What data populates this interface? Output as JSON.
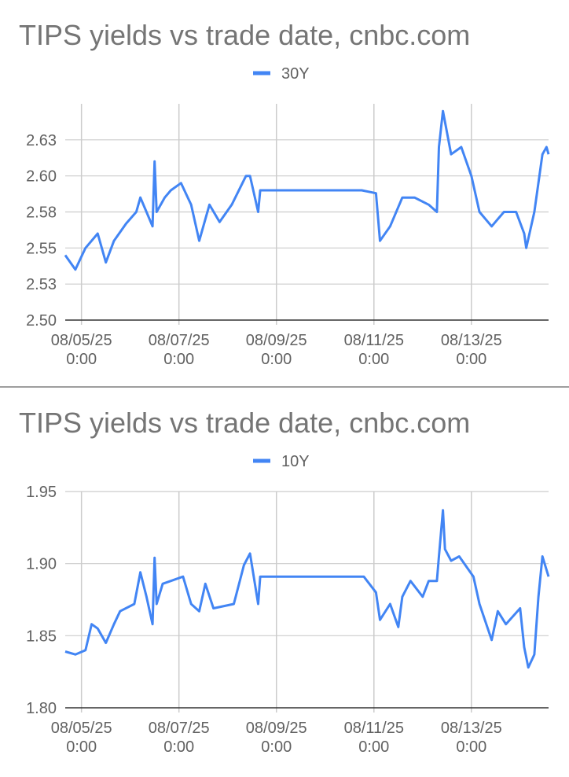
{
  "chart_data": [
    {
      "type": "line",
      "title": "TIPS yields vs trade date, cnbc.com",
      "x": [
        "08/04/25 16:00",
        "08/04/25 21:00",
        "08/05/25 2:00",
        "08/05/25 8:00",
        "08/05/25 12:00",
        "08/05/25 16:00",
        "08/05/25 22:00",
        "08/06/25 3:00",
        "08/06/25 5:00",
        "08/06/25 8:00",
        "08/06/25 11:00",
        "08/06/25 12:00",
        "08/06/25 13:00",
        "08/06/25 17:00",
        "08/06/25 20:00",
        "08/07/25 1:00",
        "08/07/25 6:00",
        "08/07/25 10:00",
        "08/07/25 15:00",
        "08/07/25 20:00",
        "08/08/25 2:00",
        "08/08/25 9:00",
        "08/08/25 11:00",
        "08/08/25 15:00",
        "08/08/25 16:00",
        "08/10/25 18:00",
        "08/11/25 1:00",
        "08/11/25 3:00",
        "08/11/25 8:00",
        "08/11/25 14:00",
        "08/11/25 20:00",
        "08/12/25 3:00",
        "08/12/25 7:00",
        "08/12/25 8:00",
        "08/12/25 10:00",
        "08/12/25 14:00",
        "08/12/25 19:00",
        "08/13/25 0:00",
        "08/13/25 4:00",
        "08/13/25 10:00",
        "08/13/25 16:00",
        "08/13/25 22:00",
        "08/14/25 2:00",
        "08/14/25 3:00",
        "08/14/25 7:00",
        "08/14/25 11:00",
        "08/14/25 13:00",
        "08/14/25 14:00"
      ],
      "series": [
        {
          "name": "30Y",
          "color": "#4285f4",
          "values": [
            2.545,
            2.535,
            2.55,
            2.56,
            2.54,
            2.555,
            2.567,
            2.575,
            2.585,
            2.575,
            2.565,
            2.61,
            2.575,
            2.585,
            2.59,
            2.595,
            2.58,
            2.555,
            2.58,
            2.568,
            2.58,
            2.6,
            2.6,
            2.575,
            2.59,
            2.59,
            2.588,
            2.555,
            2.565,
            2.585,
            2.585,
            2.58,
            2.575,
            2.62,
            2.645,
            2.615,
            2.62,
            2.6,
            2.575,
            2.565,
            2.575,
            2.575,
            2.56,
            2.55,
            2.575,
            2.615,
            2.62,
            2.615
          ]
        }
      ],
      "xlim": [
        "08/04/25 16:00",
        "08/14/25 14:00"
      ],
      "xticks": [
        "08/05/25 0:00",
        "08/07/25 0:00",
        "08/09/25 0:00",
        "08/11/25 0:00",
        "08/13/25 0:00"
      ],
      "ylim": [
        2.5,
        2.65
      ],
      "yticks": [
        {
          "value": 2.5,
          "label": "2.50"
        },
        {
          "value": 2.525,
          "label": "2.53"
        },
        2.55,
        {
          "value": 2.575,
          "label": "2.58"
        },
        {
          "value": 2.6,
          "label": "2.60"
        },
        {
          "value": 2.625,
          "label": "2.63"
        }
      ],
      "grid": true
    },
    {
      "type": "line",
      "title": "TIPS yields vs trade date, cnbc.com",
      "x": [
        "08/04/25 16:00",
        "08/04/25 21:00",
        "08/05/25 2:00",
        "08/05/25 5:00",
        "08/05/25 8:00",
        "08/05/25 12:00",
        "08/05/25 16:00",
        "08/05/25 19:00",
        "08/06/25 2:00",
        "08/06/25 5:00",
        "08/06/25 8:00",
        "08/06/25 11:00",
        "08/06/25 12:00",
        "08/06/25 13:00",
        "08/06/25 16:00",
        "08/06/25 20:00",
        "08/07/25 2:00",
        "08/07/25 6:00",
        "08/07/25 10:00",
        "08/07/25 13:00",
        "08/07/25 17:00",
        "08/08/25 3:00",
        "08/08/25 8:00",
        "08/08/25 11:00",
        "08/08/25 15:00",
        "08/08/25 16:00",
        "08/10/25 19:00",
        "08/11/25 1:00",
        "08/11/25 3:00",
        "08/11/25 8:00",
        "08/11/25 12:00",
        "08/11/25 14:00",
        "08/11/25 18:00",
        "08/12/25 0:00",
        "08/12/25 3:00",
        "08/12/25 7:00",
        "08/12/25 8:00",
        "08/12/25 10:00",
        "08/12/25 11:00",
        "08/12/25 14:00",
        "08/12/25 18:00",
        "08/13/25 1:00",
        "08/13/25 4:00",
        "08/13/25 10:00",
        "08/13/25 13:00",
        "08/13/25 17:00",
        "08/14/25 0:00",
        "08/14/25 2:00",
        "08/14/25 4:00",
        "08/14/25 7:00",
        "08/14/25 9:00",
        "08/14/25 11:00",
        "08/14/25 14:00"
      ],
      "series": [
        {
          "name": "10Y",
          "color": "#4285f4",
          "values": [
            1.839,
            1.837,
            1.84,
            1.858,
            1.855,
            1.845,
            1.858,
            1.867,
            1.872,
            1.894,
            1.877,
            1.858,
            1.904,
            1.872,
            1.886,
            1.888,
            1.891,
            1.872,
            1.867,
            1.886,
            1.869,
            1.872,
            1.899,
            1.907,
            1.872,
            1.891,
            1.891,
            1.88,
            1.861,
            1.872,
            1.856,
            1.877,
            1.888,
            1.877,
            1.888,
            1.888,
            1.905,
            1.937,
            1.91,
            1.902,
            1.905,
            1.891,
            1.872,
            1.847,
            1.867,
            1.858,
            1.869,
            1.842,
            1.828,
            1.837,
            1.877,
            1.905,
            1.891
          ]
        }
      ],
      "xlim": [
        "08/04/25 16:00",
        "08/14/25 14:00"
      ],
      "xticks": [
        "08/05/25 0:00",
        "08/07/25 0:00",
        "08/09/25 0:00",
        "08/11/25 0:00",
        "08/13/25 0:00"
      ],
      "ylim": [
        1.8,
        1.95
      ],
      "yticks": [
        {
          "value": 1.8,
          "label": "1.80"
        },
        1.85,
        {
          "value": 1.9,
          "label": "1.90"
        },
        1.95
      ],
      "grid": true
    }
  ]
}
